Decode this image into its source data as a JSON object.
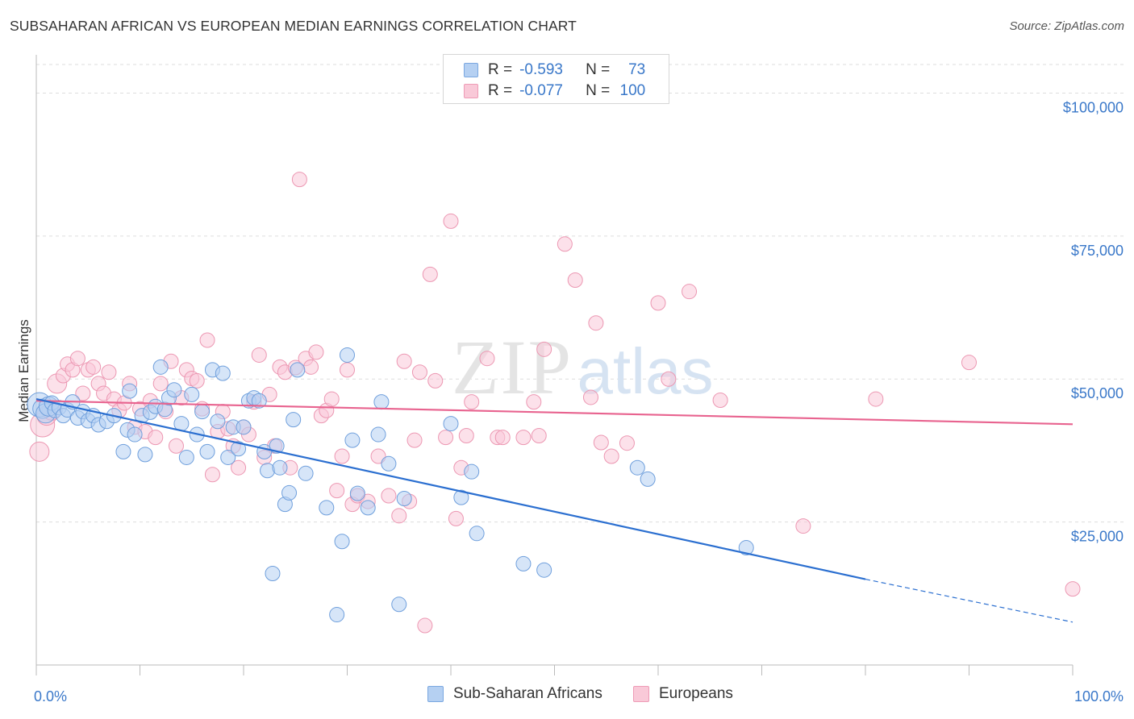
{
  "header": {
    "title": "SUBSAHARAN AFRICAN VS EUROPEAN MEDIAN EARNINGS CORRELATION CHART",
    "source": "Source: ZipAtlas.com"
  },
  "legend": {
    "rows": [
      {
        "r_label": "R =",
        "r_value": "-0.593",
        "n_label": "N =",
        "n_value": "73"
      },
      {
        "r_label": "R =",
        "r_value": "-0.077",
        "n_label": "N =",
        "n_value": "100"
      }
    ]
  },
  "bottom_legend": {
    "items": [
      {
        "label": "Sub-Saharan Africans"
      },
      {
        "label": "Europeans"
      }
    ]
  },
  "watermark": {
    "zip": "ZIP",
    "atlas": "atlas"
  },
  "colors": {
    "blue_fill": "#b5d0f2",
    "blue_stroke": "#6f9fdc",
    "blue_line": "#2b6fd0",
    "pink_fill": "#f9c9d8",
    "pink_stroke": "#ec97b2",
    "pink_line": "#e8638f",
    "tick_label": "#3a78c9",
    "grid": "#dddddd"
  },
  "chart_data": {
    "type": "scatter",
    "title": "SUBSAHARAN AFRICAN VS EUROPEAN MEDIAN EARNINGS CORRELATION CHART",
    "xlabel": "",
    "ylabel": "Median Earnings",
    "xlim": [
      0,
      100
    ],
    "ylim": [
      0,
      105000
    ],
    "x_tick_labels": [
      "0.0%",
      "100.0%"
    ],
    "y_ticks": [
      25000,
      50000,
      75000,
      100000
    ],
    "y_tick_labels": [
      "$25,000",
      "$50,000",
      "$75,000",
      "$100,000"
    ],
    "series": [
      {
        "name": "Sub-Saharan Africans",
        "r": -0.593,
        "n": 73,
        "trend": {
          "x0": 0,
          "y0": 46500,
          "x1": 80,
          "y1": 15000,
          "dash_to_x": 100,
          "dash_to_y": 7500
        },
        "points": [
          [
            0.3,
            45500,
            3
          ],
          [
            0.6,
            44800,
            2
          ],
          [
            0.9,
            44000,
            2
          ],
          [
            1.2,
            45200,
            2
          ],
          [
            1.5,
            45800,
            1
          ],
          [
            1.8,
            44500,
            1
          ],
          [
            2.2,
            45000,
            1
          ],
          [
            2.6,
            43600,
            1
          ],
          [
            3.0,
            44600,
            1
          ],
          [
            3.5,
            46000,
            1
          ],
          [
            4.0,
            43200,
            1
          ],
          [
            4.5,
            44300,
            1
          ],
          [
            5.0,
            42700,
            1
          ],
          [
            5.5,
            43600,
            1
          ],
          [
            6.0,
            42000,
            1
          ],
          [
            6.8,
            42600,
            1
          ],
          [
            7.5,
            43600,
            1
          ],
          [
            8.4,
            37300,
            1
          ],
          [
            8.8,
            41100,
            1
          ],
          [
            9.0,
            47900,
            1
          ],
          [
            9.5,
            40300,
            1
          ],
          [
            10.2,
            43600,
            1
          ],
          [
            10.5,
            36800,
            1
          ],
          [
            11.0,
            44200,
            1
          ],
          [
            11.5,
            45200,
            1
          ],
          [
            12.0,
            52100,
            1
          ],
          [
            12.4,
            44700,
            1
          ],
          [
            12.8,
            46700,
            1
          ],
          [
            13.3,
            48100,
            1
          ],
          [
            14.0,
            42200,
            1
          ],
          [
            14.5,
            36300,
            1
          ],
          [
            15.0,
            47300,
            1
          ],
          [
            15.5,
            40300,
            1
          ],
          [
            16.0,
            44300,
            1
          ],
          [
            16.5,
            37300,
            1
          ],
          [
            17.0,
            51600,
            1
          ],
          [
            17.5,
            42600,
            1
          ],
          [
            18.0,
            51000,
            1
          ],
          [
            18.5,
            36300,
            1
          ],
          [
            19.0,
            41600,
            1
          ],
          [
            19.5,
            37800,
            1
          ],
          [
            20.0,
            41600,
            1
          ],
          [
            20.5,
            46200,
            1
          ],
          [
            21.0,
            46700,
            1
          ],
          [
            21.5,
            46200,
            1
          ],
          [
            22.0,
            37300,
            1
          ],
          [
            22.3,
            34000,
            1
          ],
          [
            22.8,
            16000,
            1
          ],
          [
            23.2,
            38300,
            1
          ],
          [
            23.5,
            34500,
            1
          ],
          [
            24.0,
            28100,
            1
          ],
          [
            24.4,
            30100,
            1
          ],
          [
            24.8,
            42900,
            1
          ],
          [
            25.2,
            51600,
            1
          ],
          [
            26.0,
            33500,
            1
          ],
          [
            28.0,
            27500,
            1
          ],
          [
            29.0,
            8800,
            1
          ],
          [
            29.5,
            21600,
            1
          ],
          [
            30.0,
            54200,
            1
          ],
          [
            30.5,
            39300,
            1
          ],
          [
            31.0,
            30000,
            1
          ],
          [
            32.0,
            27500,
            1
          ],
          [
            33.0,
            40300,
            1
          ],
          [
            33.3,
            46000,
            1
          ],
          [
            34.0,
            35200,
            1
          ],
          [
            35.0,
            10600,
            1
          ],
          [
            35.5,
            29100,
            1
          ],
          [
            40.0,
            42200,
            1
          ],
          [
            41.0,
            29300,
            1
          ],
          [
            42.0,
            33800,
            1
          ],
          [
            42.5,
            23000,
            1
          ],
          [
            47.0,
            17700,
            1
          ],
          [
            49.0,
            16600,
            1
          ],
          [
            58.0,
            34500,
            1
          ],
          [
            59.0,
            32500,
            1
          ],
          [
            68.5,
            20500,
            1
          ]
        ]
      },
      {
        "name": "Europeans",
        "r": -0.077,
        "n": 100,
        "trend": {
          "x0": 0,
          "y0": 46200,
          "x1": 100,
          "y1": 42100
        },
        "points": [
          [
            0.3,
            37300,
            2
          ],
          [
            0.6,
            42000,
            3
          ],
          [
            1.0,
            43600,
            2
          ],
          [
            1.5,
            44500,
            2
          ],
          [
            2.0,
            49200,
            2
          ],
          [
            2.6,
            50600,
            1
          ],
          [
            3.0,
            52600,
            1
          ],
          [
            3.5,
            51600,
            1
          ],
          [
            4.0,
            53600,
            1
          ],
          [
            4.5,
            47500,
            1
          ],
          [
            5.0,
            51600,
            1
          ],
          [
            5.5,
            52100,
            1
          ],
          [
            6.0,
            49200,
            1
          ],
          [
            6.5,
            47500,
            1
          ],
          [
            7.0,
            51200,
            1
          ],
          [
            7.5,
            46500,
            1
          ],
          [
            8.0,
            44500,
            1
          ],
          [
            8.5,
            45800,
            1
          ],
          [
            9.0,
            49200,
            1
          ],
          [
            9.5,
            41600,
            1
          ],
          [
            10.0,
            44800,
            1
          ],
          [
            10.5,
            40800,
            1
          ],
          [
            11.0,
            46200,
            1
          ],
          [
            11.5,
            39800,
            1
          ],
          [
            12.0,
            49200,
            1
          ],
          [
            12.5,
            44300,
            1
          ],
          [
            13.0,
            53100,
            1
          ],
          [
            13.5,
            38300,
            1
          ],
          [
            14.0,
            46700,
            1
          ],
          [
            14.5,
            51600,
            1
          ],
          [
            15.0,
            50100,
            1
          ],
          [
            15.5,
            49700,
            1
          ],
          [
            16.0,
            44800,
            1
          ],
          [
            16.5,
            56800,
            1
          ],
          [
            17.0,
            33300,
            1
          ],
          [
            17.5,
            40800,
            1
          ],
          [
            18.0,
            44300,
            1
          ],
          [
            18.5,
            41300,
            1
          ],
          [
            19.0,
            38300,
            1
          ],
          [
            19.5,
            34500,
            1
          ],
          [
            20.0,
            41600,
            1
          ],
          [
            20.5,
            40300,
            1
          ],
          [
            21.0,
            46000,
            1
          ],
          [
            21.5,
            54200,
            1
          ],
          [
            22.0,
            36300,
            1
          ],
          [
            22.5,
            47300,
            1
          ],
          [
            23.0,
            38300,
            1
          ],
          [
            23.5,
            52100,
            1
          ],
          [
            24.0,
            51200,
            1
          ],
          [
            24.5,
            34500,
            1
          ],
          [
            25.0,
            52000,
            1
          ],
          [
            25.4,
            84900,
            1
          ],
          [
            26.0,
            53600,
            1
          ],
          [
            26.5,
            52100,
            1
          ],
          [
            27.0,
            54700,
            1
          ],
          [
            27.5,
            43600,
            1
          ],
          [
            28.0,
            44500,
            1
          ],
          [
            28.5,
            46500,
            1
          ],
          [
            29.0,
            30500,
            1
          ],
          [
            29.5,
            36500,
            1
          ],
          [
            30.0,
            51600,
            1
          ],
          [
            30.5,
            28100,
            1
          ],
          [
            31.0,
            29600,
            1
          ],
          [
            32.0,
            28600,
            1
          ],
          [
            33.0,
            36500,
            1
          ],
          [
            34.0,
            29600,
            1
          ],
          [
            35.0,
            26100,
            1
          ],
          [
            35.5,
            53100,
            1
          ],
          [
            36.0,
            28600,
            1
          ],
          [
            36.5,
            39300,
            1
          ],
          [
            37.0,
            51200,
            1
          ],
          [
            37.5,
            6900,
            1
          ],
          [
            38.0,
            68300,
            1
          ],
          [
            38.5,
            49700,
            1
          ],
          [
            39.5,
            39800,
            1
          ],
          [
            40.0,
            77600,
            1
          ],
          [
            40.5,
            25600,
            1
          ],
          [
            41.0,
            34500,
            1
          ],
          [
            41.5,
            40100,
            1
          ],
          [
            42.0,
            46000,
            1
          ],
          [
            43.5,
            53600,
            1
          ],
          [
            44.5,
            39800,
            1
          ],
          [
            45.0,
            39800,
            1
          ],
          [
            47.0,
            39800,
            1
          ],
          [
            48.0,
            46000,
            1
          ],
          [
            48.5,
            40100,
            1
          ],
          [
            49.0,
            55200,
            1
          ],
          [
            51.0,
            73600,
            1
          ],
          [
            52.0,
            67300,
            1
          ],
          [
            53.5,
            46800,
            1
          ],
          [
            54.0,
            59800,
            1
          ],
          [
            54.5,
            38900,
            1
          ],
          [
            55.5,
            36500,
            1
          ],
          [
            57.0,
            38800,
            1
          ],
          [
            60.0,
            63300,
            1
          ],
          [
            61.0,
            50000,
            1
          ],
          [
            63.0,
            65300,
            1
          ],
          [
            66.0,
            46300,
            1
          ],
          [
            74.0,
            24300,
            1
          ],
          [
            81.0,
            46500,
            1
          ],
          [
            90.0,
            52900,
            1
          ],
          [
            100.0,
            13300,
            1
          ]
        ]
      }
    ]
  }
}
